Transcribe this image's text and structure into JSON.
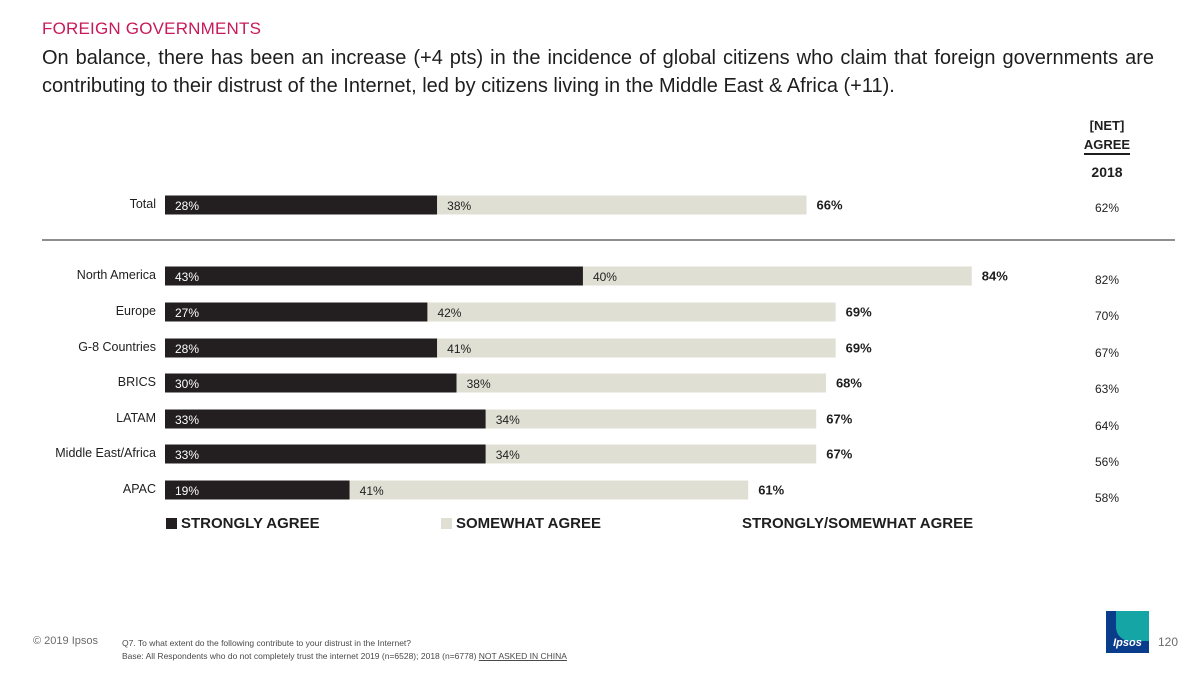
{
  "header": {
    "section": "FOREIGN GOVERNMENTS",
    "headline": "On balance, there has been an increase (+4 pts) in the incidence of global citizens who claim that foreign governments are contributing to their distrust of the Internet, led by citizens living in the Middle East & Africa (+11)."
  },
  "net_header": {
    "line1": "[NET]",
    "line2": "AGREE",
    "year": "2018"
  },
  "chart_data": {
    "type": "bar",
    "orientation": "horizontal",
    "stacked": true,
    "xlim": [
      0,
      100
    ],
    "categories": [
      "Total",
      "North America",
      "Europe",
      "G-8 Countries",
      "BRICS",
      "LATAM",
      "Middle East/Africa",
      "APAC"
    ],
    "series": [
      {
        "name": "STRONGLY AGREE",
        "values": [
          28,
          43,
          27,
          28,
          30,
          33,
          33,
          19
        ],
        "color": "#231f20"
      },
      {
        "name": "SOMEWHAT AGREE",
        "values": [
          38,
          40,
          42,
          41,
          38,
          34,
          34,
          41
        ],
        "color": "#e0dfd3"
      }
    ],
    "net_label": "STRONGLY/SOMEWHAT AGREE",
    "net_values": [
      66,
      84,
      69,
      69,
      68,
      67,
      67,
      61
    ],
    "net_2018": [
      62,
      82,
      70,
      67,
      63,
      64,
      56,
      58
    ],
    "value_suffix": "%",
    "legend_position": "bottom"
  },
  "footer": {
    "copyright": "© 2019 Ipsos",
    "question": "Q7.  To what extent do the following contribute to your distrust in the Internet?",
    "base": "Base: All Respondents who do not completely trust the internet 2019 (n=6528); 2018 (n=6778)",
    "not_asked": "NOT ASKED IN CHINA",
    "page": "120",
    "logo_text": "Ipsos"
  }
}
